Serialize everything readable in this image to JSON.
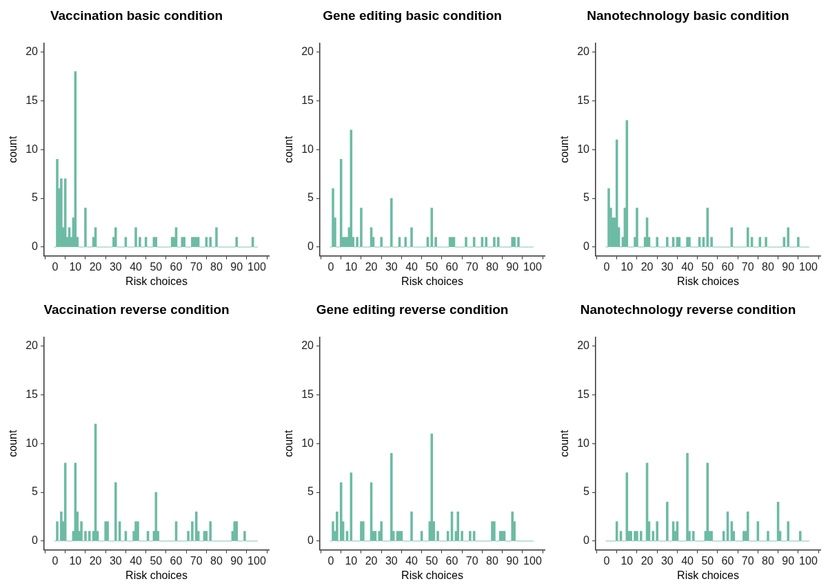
{
  "chart_data": [
    {
      "type": "histogram",
      "title": "Vaccination basic condition",
      "xlabel": "Risk choices",
      "ylabel": "count",
      "color": "#6dbba4",
      "xlim": [
        -5.5,
        106
      ],
      "xticks": [
        0,
        10,
        20,
        30,
        40,
        50,
        60,
        70,
        80,
        90,
        100
      ],
      "ylim": [
        -0.9,
        20.9
      ],
      "yticks": [
        0,
        5,
        10,
        15,
        20
      ],
      "bins": [
        -0.5,
        0.5,
        1.5,
        2.5,
        3.5,
        4.5,
        5.5,
        6.5,
        7.5,
        8.5,
        9.5,
        10.5,
        11.5,
        12.5,
        13.5,
        14.5,
        15.5,
        16.5,
        17.5,
        18.5,
        19.5,
        20.5,
        21.5,
        22.5,
        23.5,
        24.5,
        25.5,
        26.5,
        27.5,
        28.5,
        29.5,
        30.5,
        31.5,
        32.5,
        33.5,
        34.5,
        35.5,
        36.5,
        37.5,
        38.5,
        39.5,
        40.5,
        41.5,
        42.5,
        43.5,
        44.5,
        45.5,
        46.5,
        47.5,
        48.5,
        49.5,
        50.5,
        51.5,
        52.5,
        53.5,
        54.5,
        55.5,
        56.5,
        57.5,
        58.5,
        59.5,
        60.5,
        61.5,
        62.5,
        63.5,
        64.5,
        65.5,
        66.5,
        67.5,
        68.5,
        69.5,
        70.5,
        71.5,
        72.5,
        73.5,
        74.5,
        75.5,
        76.5,
        77.5,
        78.5,
        79.5,
        80.5,
        81.5,
        82.5,
        83.5,
        84.5,
        85.5,
        86.5,
        87.5,
        88.5,
        89.5,
        90.5,
        91.5,
        92.5,
        93.5,
        94.5,
        95.5,
        96.5,
        97.5,
        98.5,
        99.5,
        100.5
      ],
      "values": [
        0,
        9,
        6,
        7,
        2,
        7,
        1,
        2,
        1,
        3,
        18,
        1,
        0,
        0,
        0,
        4,
        0,
        0,
        0,
        1,
        2,
        0,
        0,
        0,
        0,
        0,
        0,
        0,
        0,
        1,
        2,
        0,
        0,
        0,
        0,
        1,
        0,
        0,
        0,
        0,
        2,
        0,
        1,
        0,
        0,
        1,
        0,
        0,
        0,
        1,
        1,
        0,
        0,
        0,
        0,
        0,
        0,
        0,
        1,
        1,
        2,
        0,
        0,
        1,
        1,
        0,
        0,
        0,
        1,
        1,
        1,
        1,
        0,
        0,
        0,
        1,
        0,
        1,
        0,
        0,
        2,
        0,
        0,
        0,
        0,
        0,
        0,
        0,
        0,
        0,
        1,
        0,
        0,
        0,
        0,
        0,
        0,
        0,
        1,
        0,
        0
      ]
    },
    {
      "type": "histogram",
      "title": "Gene editing basic condition",
      "xlabel": "Risk choices",
      "ylabel": "count",
      "color": "#6dbba4",
      "xlim": [
        -5.5,
        106
      ],
      "xticks": [
        0,
        10,
        20,
        30,
        40,
        50,
        60,
        70,
        80,
        90,
        100
      ],
      "ylim": [
        -0.9,
        20.9
      ],
      "yticks": [
        0,
        5,
        10,
        15,
        20
      ],
      "bins": [
        -0.5,
        0.5,
        1.5,
        2.5,
        3.5,
        4.5,
        5.5,
        6.5,
        7.5,
        8.5,
        9.5,
        10.5,
        11.5,
        12.5,
        13.5,
        14.5,
        15.5,
        16.5,
        17.5,
        18.5,
        19.5,
        20.5,
        21.5,
        22.5,
        23.5,
        24.5,
        25.5,
        26.5,
        27.5,
        28.5,
        29.5,
        30.5,
        31.5,
        32.5,
        33.5,
        34.5,
        35.5,
        36.5,
        37.5,
        38.5,
        39.5,
        40.5,
        41.5,
        42.5,
        43.5,
        44.5,
        45.5,
        46.5,
        47.5,
        48.5,
        49.5,
        50.5,
        51.5,
        52.5,
        53.5,
        54.5,
        55.5,
        56.5,
        57.5,
        58.5,
        59.5,
        60.5,
        61.5,
        62.5,
        63.5,
        64.5,
        65.5,
        66.5,
        67.5,
        68.5,
        69.5,
        70.5,
        71.5,
        72.5,
        73.5,
        74.5,
        75.5,
        76.5,
        77.5,
        78.5,
        79.5,
        80.5,
        81.5,
        82.5,
        83.5,
        84.5,
        85.5,
        86.5,
        87.5,
        88.5,
        89.5,
        90.5,
        91.5,
        92.5,
        93.5,
        94.5,
        95.5,
        96.5,
        97.5,
        98.5,
        99.5,
        100.5
      ],
      "values": [
        0,
        6,
        3,
        0,
        0,
        9,
        1,
        1,
        1,
        2,
        12,
        1,
        0,
        1,
        0,
        4,
        0,
        0,
        0,
        0,
        2,
        1,
        0,
        0,
        0,
        1,
        0,
        0,
        0,
        0,
        5,
        0,
        0,
        0,
        1,
        0,
        0,
        1,
        0,
        0,
        2,
        0,
        0,
        0,
        0,
        0,
        0,
        0,
        1,
        0,
        4,
        0,
        1,
        0,
        0,
        0,
        0,
        0,
        0,
        1,
        1,
        1,
        0,
        0,
        0,
        0,
        0,
        1,
        0,
        0,
        0,
        1,
        0,
        0,
        0,
        1,
        0,
        1,
        0,
        0,
        0,
        1,
        0,
        1,
        0,
        0,
        0,
        0,
        0,
        0,
        1,
        1,
        0,
        1,
        0,
        0,
        0,
        0,
        0,
        0,
        0
      ]
    },
    {
      "type": "histogram",
      "title": "Nanotechnology basic condition",
      "xlabel": "Risk choices",
      "ylabel": "count",
      "color": "#6dbba4",
      "xlim": [
        -5.5,
        106
      ],
      "xticks": [
        0,
        10,
        20,
        30,
        40,
        50,
        60,
        70,
        80,
        90,
        100
      ],
      "ylim": [
        -0.9,
        20.9
      ],
      "yticks": [
        0,
        5,
        10,
        15,
        20
      ],
      "bins": [
        -0.5,
        0.5,
        1.5,
        2.5,
        3.5,
        4.5,
        5.5,
        6.5,
        7.5,
        8.5,
        9.5,
        10.5,
        11.5,
        12.5,
        13.5,
        14.5,
        15.5,
        16.5,
        17.5,
        18.5,
        19.5,
        20.5,
        21.5,
        22.5,
        23.5,
        24.5,
        25.5,
        26.5,
        27.5,
        28.5,
        29.5,
        30.5,
        31.5,
        32.5,
        33.5,
        34.5,
        35.5,
        36.5,
        37.5,
        38.5,
        39.5,
        40.5,
        41.5,
        42.5,
        43.5,
        44.5,
        45.5,
        46.5,
        47.5,
        48.5,
        49.5,
        50.5,
        51.5,
        52.5,
        53.5,
        54.5,
        55.5,
        56.5,
        57.5,
        58.5,
        59.5,
        60.5,
        61.5,
        62.5,
        63.5,
        64.5,
        65.5,
        66.5,
        67.5,
        68.5,
        69.5,
        70.5,
        71.5,
        72.5,
        73.5,
        74.5,
        75.5,
        76.5,
        77.5,
        78.5,
        79.5,
        80.5,
        81.5,
        82.5,
        83.5,
        84.5,
        85.5,
        86.5,
        87.5,
        88.5,
        89.5,
        90.5,
        91.5,
        92.5,
        93.5,
        94.5,
        95.5,
        96.5,
        97.5,
        98.5,
        99.5,
        100.5
      ],
      "values": [
        0,
        6,
        4,
        3,
        3,
        11,
        2,
        0,
        1,
        4,
        13,
        0,
        0,
        0,
        1,
        4,
        0,
        0,
        0,
        1,
        3,
        1,
        0,
        0,
        0,
        1,
        0,
        0,
        0,
        0,
        1,
        0,
        0,
        1,
        0,
        1,
        1,
        0,
        0,
        0,
        1,
        1,
        0,
        0,
        0,
        0,
        1,
        0,
        1,
        0,
        4,
        0,
        1,
        0,
        0,
        0,
        0,
        0,
        0,
        0,
        0,
        0,
        2,
        0,
        0,
        0,
        0,
        0,
        0,
        0,
        2,
        0,
        1,
        0,
        0,
        0,
        1,
        0,
        0,
        1,
        0,
        0,
        0,
        0,
        0,
        0,
        0,
        0,
        1,
        0,
        2,
        0,
        0,
        0,
        0,
        1,
        0,
        0,
        0,
        0,
        0
      ]
    },
    {
      "type": "histogram",
      "title": "Vaccination reverse condition",
      "xlabel": "Risk choices",
      "ylabel": "count",
      "color": "#6dbba4",
      "xlim": [
        -5.5,
        106
      ],
      "xticks": [
        0,
        10,
        20,
        30,
        40,
        50,
        60,
        70,
        80,
        90,
        100
      ],
      "ylim": [
        -0.9,
        20.9
      ],
      "yticks": [
        0,
        5,
        10,
        15,
        20
      ],
      "bins": [
        -0.5,
        0.5,
        1.5,
        2.5,
        3.5,
        4.5,
        5.5,
        6.5,
        7.5,
        8.5,
        9.5,
        10.5,
        11.5,
        12.5,
        13.5,
        14.5,
        15.5,
        16.5,
        17.5,
        18.5,
        19.5,
        20.5,
        21.5,
        22.5,
        23.5,
        24.5,
        25.5,
        26.5,
        27.5,
        28.5,
        29.5,
        30.5,
        31.5,
        32.5,
        33.5,
        34.5,
        35.5,
        36.5,
        37.5,
        38.5,
        39.5,
        40.5,
        41.5,
        42.5,
        43.5,
        44.5,
        45.5,
        46.5,
        47.5,
        48.5,
        49.5,
        50.5,
        51.5,
        52.5,
        53.5,
        54.5,
        55.5,
        56.5,
        57.5,
        58.5,
        59.5,
        60.5,
        61.5,
        62.5,
        63.5,
        64.5,
        65.5,
        66.5,
        67.5,
        68.5,
        69.5,
        70.5,
        71.5,
        72.5,
        73.5,
        74.5,
        75.5,
        76.5,
        77.5,
        78.5,
        79.5,
        80.5,
        81.5,
        82.5,
        83.5,
        84.5,
        85.5,
        86.5,
        87.5,
        88.5,
        89.5,
        90.5,
        91.5,
        92.5,
        93.5,
        94.5,
        95.5,
        96.5,
        97.5,
        98.5,
        99.5,
        100.5
      ],
      "values": [
        0,
        2,
        0,
        3,
        2,
        8,
        0,
        0,
        0,
        1,
        8,
        3,
        1,
        2,
        0,
        1,
        0,
        1,
        0,
        1,
        12,
        1,
        0,
        0,
        0,
        2,
        2,
        0,
        0,
        0,
        6,
        0,
        2,
        0,
        0,
        1,
        0,
        0,
        0,
        1,
        2,
        2,
        0,
        0,
        0,
        0,
        1,
        0,
        0,
        1,
        5,
        1,
        0,
        0,
        0,
        0,
        0,
        0,
        0,
        0,
        2,
        0,
        0,
        0,
        0,
        0,
        1,
        0,
        2,
        0,
        3,
        1,
        0,
        0,
        1,
        1,
        0,
        2,
        0,
        0,
        0,
        0,
        0,
        0,
        0,
        0,
        0,
        0,
        1,
        2,
        2,
        0,
        0,
        0,
        1,
        0,
        0,
        0,
        0,
        0,
        0
      ]
    },
    {
      "type": "histogram",
      "title": "Gene editing reverse condition",
      "xlabel": "Risk choices",
      "ylabel": "count",
      "color": "#6dbba4",
      "xlim": [
        -5.5,
        106
      ],
      "xticks": [
        0,
        10,
        20,
        30,
        40,
        50,
        60,
        70,
        80,
        90,
        100
      ],
      "ylim": [
        -0.9,
        20.9
      ],
      "yticks": [
        0,
        5,
        10,
        15,
        20
      ],
      "bins": [
        -0.5,
        0.5,
        1.5,
        2.5,
        3.5,
        4.5,
        5.5,
        6.5,
        7.5,
        8.5,
        9.5,
        10.5,
        11.5,
        12.5,
        13.5,
        14.5,
        15.5,
        16.5,
        17.5,
        18.5,
        19.5,
        20.5,
        21.5,
        22.5,
        23.5,
        24.5,
        25.5,
        26.5,
        27.5,
        28.5,
        29.5,
        30.5,
        31.5,
        32.5,
        33.5,
        34.5,
        35.5,
        36.5,
        37.5,
        38.5,
        39.5,
        40.5,
        41.5,
        42.5,
        43.5,
        44.5,
        45.5,
        46.5,
        47.5,
        48.5,
        49.5,
        50.5,
        51.5,
        52.5,
        53.5,
        54.5,
        55.5,
        56.5,
        57.5,
        58.5,
        59.5,
        60.5,
        61.5,
        62.5,
        63.5,
        64.5,
        65.5,
        66.5,
        67.5,
        68.5,
        69.5,
        70.5,
        71.5,
        72.5,
        73.5,
        74.5,
        75.5,
        76.5,
        77.5,
        78.5,
        79.5,
        80.5,
        81.5,
        82.5,
        83.5,
        84.5,
        85.5,
        86.5,
        87.5,
        88.5,
        89.5,
        90.5,
        91.5,
        92.5,
        93.5,
        94.5,
        95.5,
        96.5,
        97.5,
        98.5,
        99.5,
        100.5
      ],
      "values": [
        0,
        2,
        1,
        3,
        0,
        6,
        2,
        0,
        1,
        0,
        7,
        0,
        0,
        0,
        0,
        2,
        2,
        0,
        0,
        0,
        6,
        1,
        1,
        0,
        1,
        2,
        0,
        0,
        0,
        0,
        9,
        1,
        0,
        1,
        1,
        1,
        0,
        0,
        0,
        0,
        3,
        0,
        0,
        0,
        0,
        1,
        0,
        0,
        0,
        2,
        11,
        2,
        0,
        1,
        0,
        0,
        0,
        0,
        1,
        0,
        3,
        0,
        1,
        3,
        0,
        1,
        0,
        0,
        0,
        1,
        0,
        1,
        0,
        0,
        0,
        0,
        0,
        0,
        0,
        0,
        2,
        2,
        0,
        0,
        1,
        1,
        1,
        0,
        0,
        0,
        3,
        2,
        0,
        0,
        0,
        0,
        0,
        0,
        0,
        0,
        0
      ]
    },
    {
      "type": "histogram",
      "title": "Nanotechnology reverse condition",
      "xlabel": "Risk choices",
      "ylabel": "count",
      "color": "#6dbba4",
      "xlim": [
        -5.5,
        106
      ],
      "xticks": [
        0,
        10,
        20,
        30,
        40,
        50,
        60,
        70,
        80,
        90,
        100
      ],
      "ylim": [
        -0.9,
        20.9
      ],
      "yticks": [
        0,
        5,
        10,
        15,
        20
      ],
      "bins": [
        -0.5,
        0.5,
        1.5,
        2.5,
        3.5,
        4.5,
        5.5,
        6.5,
        7.5,
        8.5,
        9.5,
        10.5,
        11.5,
        12.5,
        13.5,
        14.5,
        15.5,
        16.5,
        17.5,
        18.5,
        19.5,
        20.5,
        21.5,
        22.5,
        23.5,
        24.5,
        25.5,
        26.5,
        27.5,
        28.5,
        29.5,
        30.5,
        31.5,
        32.5,
        33.5,
        34.5,
        35.5,
        36.5,
        37.5,
        38.5,
        39.5,
        40.5,
        41.5,
        42.5,
        43.5,
        44.5,
        45.5,
        46.5,
        47.5,
        48.5,
        49.5,
        50.5,
        51.5,
        52.5,
        53.5,
        54.5,
        55.5,
        56.5,
        57.5,
        58.5,
        59.5,
        60.5,
        61.5,
        62.5,
        63.5,
        64.5,
        65.5,
        66.5,
        67.5,
        68.5,
        69.5,
        70.5,
        71.5,
        72.5,
        73.5,
        74.5,
        75.5,
        76.5,
        77.5,
        78.5,
        79.5,
        80.5,
        81.5,
        82.5,
        83.5,
        84.5,
        85.5,
        86.5,
        87.5,
        88.5,
        89.5,
        90.5,
        91.5,
        92.5,
        93.5,
        94.5,
        95.5,
        96.5,
        97.5,
        98.5,
        99.5,
        100.5
      ],
      "values": [
        0,
        0,
        0,
        0,
        0,
        2,
        0,
        1,
        0,
        0,
        7,
        1,
        1,
        0,
        1,
        1,
        0,
        1,
        0,
        0,
        8,
        2,
        0,
        1,
        0,
        2,
        0,
        0,
        0,
        0,
        4,
        0,
        0,
        2,
        1,
        2,
        0,
        0,
        0,
        0,
        9,
        1,
        0,
        1,
        0,
        0,
        0,
        0,
        0,
        1,
        8,
        1,
        1,
        0,
        0,
        0,
        0,
        0,
        1,
        0,
        3,
        0,
        2,
        1,
        0,
        0,
        0,
        0,
        1,
        1,
        3,
        0,
        0,
        0,
        0,
        2,
        0,
        0,
        0,
        0,
        1,
        0,
        0,
        0,
        0,
        4,
        1,
        0,
        0,
        0,
        2,
        0,
        0,
        0,
        0,
        0,
        1,
        0,
        0,
        0,
        0
      ]
    }
  ]
}
